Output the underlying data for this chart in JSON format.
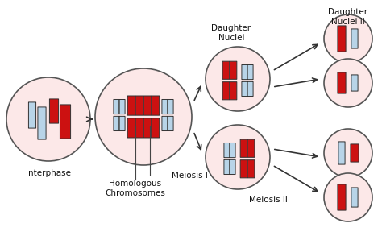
{
  "bg_color": "#ffffff",
  "cell_fill": "#fce8e8",
  "cell_edge": "#555555",
  "red_chrom": "#cc1111",
  "blue_chrom": "#b8d4e8",
  "blue_edge": "#6699bb",
  "red_edge": "#881111",
  "arrow_color": "#333333",
  "label_color": "#111111",
  "font_size": 7.5,
  "labels": {
    "interphase": "Interphase",
    "meiosis1": "Meiosis I",
    "homologous": "Homologous\nChromosomes",
    "daughter_nuclei": "Daughter\nNuclei",
    "meiosis2": "Meiosis II",
    "daughter_nuclei2": "Daughter\nNuclei II"
  }
}
